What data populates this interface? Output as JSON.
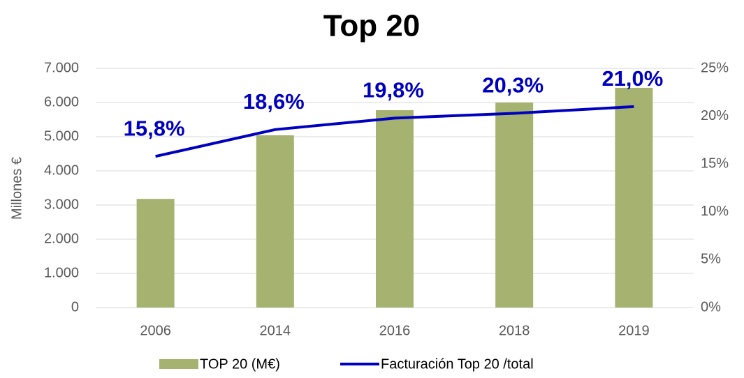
{
  "chart_data": {
    "type": "bar_line",
    "title": "Top 20",
    "y_label": "Millones €",
    "categories": [
      "2006",
      "2014",
      "2016",
      "2018",
      "2019"
    ],
    "series": [
      {
        "name": "TOP 20 (M€)",
        "type": "bar",
        "color": "#a5b270",
        "values": [
          3180,
          5040,
          5775,
          6000,
          6430
        ]
      },
      {
        "name": "Facturación Top 20 /total",
        "type": "line",
        "color": "#0000c0",
        "axis": "y2",
        "values": [
          15.8,
          18.6,
          19.8,
          20.3,
          21.0
        ],
        "value_labels": [
          "15,8%",
          "18,6%",
          "19,8%",
          "20,3%",
          "21,0%"
        ]
      }
    ],
    "ylim": [
      0,
      7000
    ],
    "yticks": [
      0,
      {
        "value": 1000,
        "label": "1.000"
      },
      {
        "value": 2000,
        "label": "2.000"
      },
      {
        "value": 3000,
        "label": "3.000"
      },
      {
        "value": 4000,
        "label": "4.000"
      },
      {
        "value": 5000,
        "label": "5.000"
      },
      {
        "value": 6000,
        "label": "6.000"
      },
      {
        "value": 7000,
        "label": "7.000"
      }
    ],
    "y2lim": [
      0,
      25
    ],
    "y2ticks": [
      {
        "value": 0,
        "label": "0%"
      },
      {
        "value": 5,
        "label": "5%"
      },
      {
        "value": 10,
        "label": "10%"
      },
      {
        "value": 15,
        "label": "15%"
      },
      {
        "value": 20,
        "label": "20%"
      },
      {
        "value": 25,
        "label": "25%"
      }
    ],
    "grid": true
  }
}
